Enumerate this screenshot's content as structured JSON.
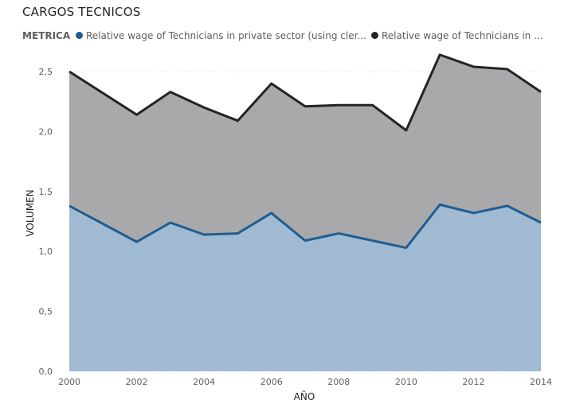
{
  "title": "CARGOS TECNICOS",
  "legend": {
    "title": "METRICA",
    "items": [
      {
        "label": "Relative wage of Technicians in private sector  (using cler...",
        "color": "#1f5d91"
      },
      {
        "label": "Relative wage of Technicians in ...",
        "color": "#252423"
      }
    ]
  },
  "chart_data": {
    "type": "area",
    "stacked": true,
    "title": "CARGOS TECNICOS",
    "xlabel": "AÑO",
    "ylabel": "VOLUMEN",
    "x": [
      2000,
      2001,
      2002,
      2003,
      2004,
      2005,
      2006,
      2007,
      2008,
      2009,
      2010,
      2011,
      2012,
      2013,
      2014
    ],
    "xticks": [
      "2000",
      "2002",
      "2004",
      "2006",
      "2008",
      "2010",
      "2012",
      "2014"
    ],
    "xtick_values": [
      2000,
      2002,
      2004,
      2006,
      2008,
      2010,
      2012,
      2014
    ],
    "yticks": [
      "0,0",
      "0,5",
      "1,0",
      "1,5",
      "2,0",
      "2,5"
    ],
    "ytick_values": [
      0,
      0.5,
      1.0,
      1.5,
      2.0,
      2.5
    ],
    "ylim": [
      0,
      2.5
    ],
    "xlim": [
      2000,
      2014
    ],
    "grid": true,
    "legend_position": "top-left",
    "series": [
      {
        "name": "Relative wage of Technicians in private sector  (using cler...",
        "values": [
          1.38,
          1.23,
          1.08,
          1.24,
          1.14,
          1.15,
          1.32,
          1.09,
          1.15,
          1.09,
          1.03,
          1.39,
          1.32,
          1.38,
          1.24
        ],
        "line_color": "#1f5d91",
        "fill_color": "#a0bad1"
      },
      {
        "name": "Relative wage of Technicians in ...",
        "values": [
          1.12,
          1.09,
          1.06,
          1.09,
          1.06,
          0.94,
          1.08,
          1.12,
          1.07,
          1.13,
          0.98,
          1.25,
          1.22,
          1.14,
          1.09
        ],
        "line_color": "#252423",
        "fill_color": "#a9a9ac"
      }
    ]
  }
}
